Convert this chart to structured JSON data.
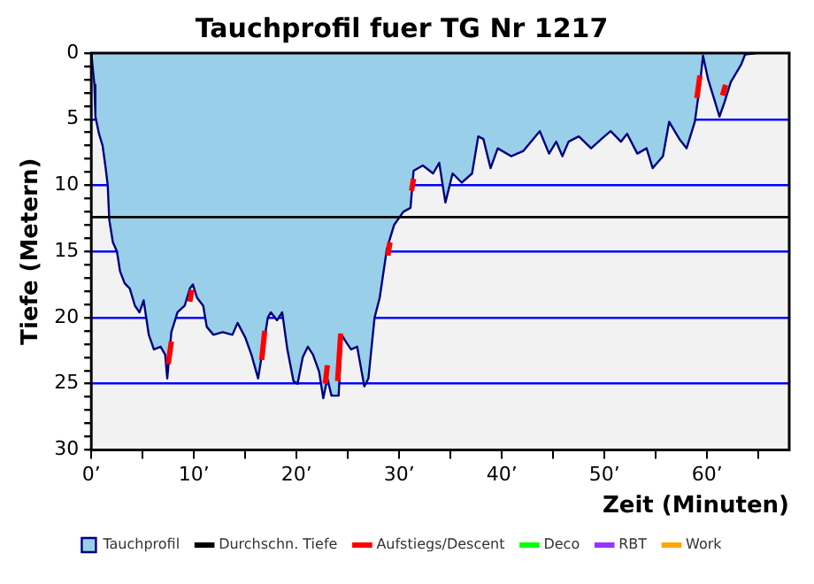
{
  "chart_data": {
    "type": "area",
    "title": "Tauchprofil fuer TG Nr 1217",
    "xlabel": "Zeit (Minuten)",
    "ylabel": "Tiefe (Metern)",
    "series": [
      {
        "name": "Tauchprofil",
        "color": "#99cfe8",
        "x": [
          0,
          0.3,
          0.4,
          0.75,
          1.1,
          1.4,
          1.6,
          1.75,
          2.1,
          2.5,
          2.8,
          3.25,
          3.75,
          4.25,
          4.7,
          5.1,
          5.6,
          6.1,
          6.75,
          7.2,
          7.4,
          7.8,
          8.4,
          9.1,
          9.6,
          9.9,
          10.3,
          10.9,
          11.25,
          11.9,
          12.8,
          13.75,
          14.25,
          15,
          15.6,
          16.25,
          16.75,
          17.2,
          17.5,
          18.1,
          18.6,
          19.1,
          19.7,
          20.1,
          20.6,
          21.1,
          21.6,
          22.2,
          22.6,
          23,
          23.4,
          24.1,
          24.4,
          24.7,
          25.3,
          25.9,
          26.6,
          27,
          27.6,
          28.1,
          28.8,
          29.5,
          30.4,
          31.1,
          31.4,
          32.3,
          33.3,
          33.9,
          34.5,
          35.2,
          36.1,
          37.1,
          37.7,
          38.2,
          38.9,
          39.6,
          40.9,
          42.1,
          43.7,
          44.6,
          45.3,
          45.9,
          46.5,
          47.5,
          48.7,
          49.7,
          50.6,
          51.6,
          52.2,
          53.2,
          54.1,
          54.7,
          55.7,
          56.3,
          57.3,
          58,
          58.8,
          59.3,
          59.6,
          60.1,
          60.7,
          61.2,
          61.7,
          62.3,
          63.3,
          63.7,
          64.8
        ],
        "values": [
          0,
          2.4,
          4.8,
          6.1,
          7,
          8.7,
          10,
          12.6,
          14.3,
          15,
          16.5,
          17.4,
          17.8,
          19.1,
          19.6,
          18.7,
          21.3,
          22.4,
          22.2,
          22.8,
          24.6,
          21.1,
          19.6,
          19.1,
          17.8,
          17.5,
          18.5,
          19.1,
          20.7,
          21.3,
          21.1,
          21.3,
          20.4,
          21.5,
          22.8,
          24.6,
          22.2,
          20,
          19.6,
          20.2,
          19.6,
          22.4,
          24.8,
          25,
          23,
          22.2,
          22.8,
          24.1,
          26.1,
          24.6,
          25.9,
          25.9,
          21.3,
          21.7,
          22.4,
          22.2,
          25.2,
          24.6,
          20,
          18.5,
          14.8,
          13,
          12,
          11.7,
          8.9,
          8.5,
          9.1,
          8.3,
          11.3,
          9.1,
          9.8,
          9.1,
          6.3,
          6.5,
          8.7,
          7.2,
          7.8,
          7.4,
          5.9,
          7.6,
          6.7,
          7.8,
          6.7,
          6.3,
          7.2,
          6.5,
          5.9,
          6.7,
          6.1,
          7.6,
          7.2,
          8.7,
          7.8,
          5.2,
          6.5,
          7.2,
          5.2,
          2.4,
          0.2,
          2,
          3.5,
          4.8,
          3.7,
          2.2,
          0.9,
          0.1,
          0
        ]
      },
      {
        "name": "Aufstiegs/Descent",
        "type": "line",
        "color": "#ff0000",
        "x": [
          7.5,
          7.8,
          7.9,
          9.6,
          9.8,
          9.9,
          16.6,
          16.9,
          17.0,
          22.8,
          23.0,
          23.1,
          24.0,
          24.3,
          24.4,
          28.9,
          29.1,
          29.2,
          31.2,
          31.4,
          31.5,
          59.0,
          59.3,
          59.4,
          61.5,
          61.8
        ],
        "values": [
          23.5,
          21.8,
          null,
          18.8,
          17.9,
          null,
          23.2,
          21.0,
          null,
          25.0,
          23.6,
          null,
          24.8,
          21.2,
          null,
          15.3,
          14.3,
          null,
          10.4,
          9.5,
          null,
          3.4,
          1.7,
          null,
          3.2,
          2.4
        ]
      },
      {
        "name": "Deco",
        "type": "line",
        "color": "#00ff00"
      },
      {
        "name": "RBT",
        "type": "line",
        "color": "#9933ff"
      },
      {
        "name": "Work",
        "type": "line",
        "color": "#ffa500"
      }
    ],
    "ref_lines": [
      {
        "axis": "y",
        "value": 12.4,
        "label": "Durchschn. Tiefe",
        "color": "#000000"
      }
    ],
    "xlim": [
      0,
      68
    ],
    "xticks": [
      {
        "value": 0,
        "label": "0’"
      },
      {
        "value": 5,
        "label": null
      },
      {
        "value": 10,
        "label": "10’"
      },
      {
        "value": 15,
        "label": null
      },
      {
        "value": 20,
        "label": "20’"
      },
      {
        "value": 25,
        "label": null
      },
      {
        "value": 30,
        "label": "30’"
      },
      {
        "value": 35,
        "label": null
      },
      {
        "value": 40,
        "label": "40’"
      },
      {
        "value": 45,
        "label": null
      },
      {
        "value": 50,
        "label": "50’"
      },
      {
        "value": 55,
        "label": null
      },
      {
        "value": 60,
        "label": "60’"
      },
      {
        "value": 65,
        "label": null
      }
    ],
    "ylim": [
      30,
      0
    ],
    "yticks": [
      0,
      {
        "value": 1,
        "label": null
      },
      {
        "value": 2,
        "label": null
      },
      {
        "value": 3,
        "label": null
      },
      {
        "value": 4,
        "label": null
      },
      5,
      {
        "value": 6,
        "label": null
      },
      {
        "value": 7,
        "label": null
      },
      {
        "value": 8,
        "label": null
      },
      {
        "value": 9,
        "label": null
      },
      10,
      {
        "value": 11,
        "label": null
      },
      {
        "value": 12,
        "label": null
      },
      {
        "value": 13,
        "label": null
      },
      {
        "value": 14,
        "label": null
      },
      15,
      {
        "value": 16,
        "label": null
      },
      {
        "value": 17,
        "label": null
      },
      {
        "value": 18,
        "label": null
      },
      {
        "value": 19,
        "label": null
      },
      20,
      {
        "value": 21,
        "label": null
      },
      {
        "value": 22,
        "label": null
      },
      {
        "value": 23,
        "label": null
      },
      {
        "value": 24,
        "label": null
      },
      25,
      {
        "value": 26,
        "label": null
      },
      {
        "value": 27,
        "label": null
      },
      {
        "value": 28,
        "label": null
      },
      {
        "value": 29,
        "label": null
      },
      30
    ],
    "grid": "y",
    "legend": "bottom"
  }
}
